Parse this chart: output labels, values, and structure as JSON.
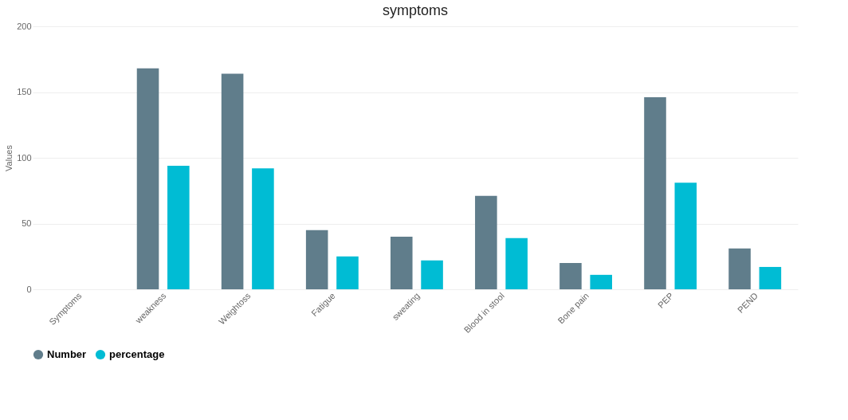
{
  "chart_data": {
    "type": "bar",
    "title": "symptoms",
    "ylabel": "Values",
    "categories": [
      "Symptoms",
      "weakness",
      "Weightoss",
      "Fatigue",
      "sweating",
      "Blood in stool",
      "Bone pain",
      "PEP",
      "PEND"
    ],
    "series": [
      {
        "name": "Number",
        "color": "#607d8b",
        "values": [
          null,
          168,
          164,
          45,
          40,
          71,
          20,
          146,
          31
        ]
      },
      {
        "name": "percentage",
        "color": "#00bcd4",
        "values": [
          null,
          94,
          92,
          25,
          22,
          39,
          11,
          81,
          17
        ]
      }
    ],
    "ylim": [
      0,
      200
    ],
    "yticks": [
      0,
      50,
      100,
      150,
      200
    ],
    "grid": "y",
    "legend": "bottom"
  }
}
